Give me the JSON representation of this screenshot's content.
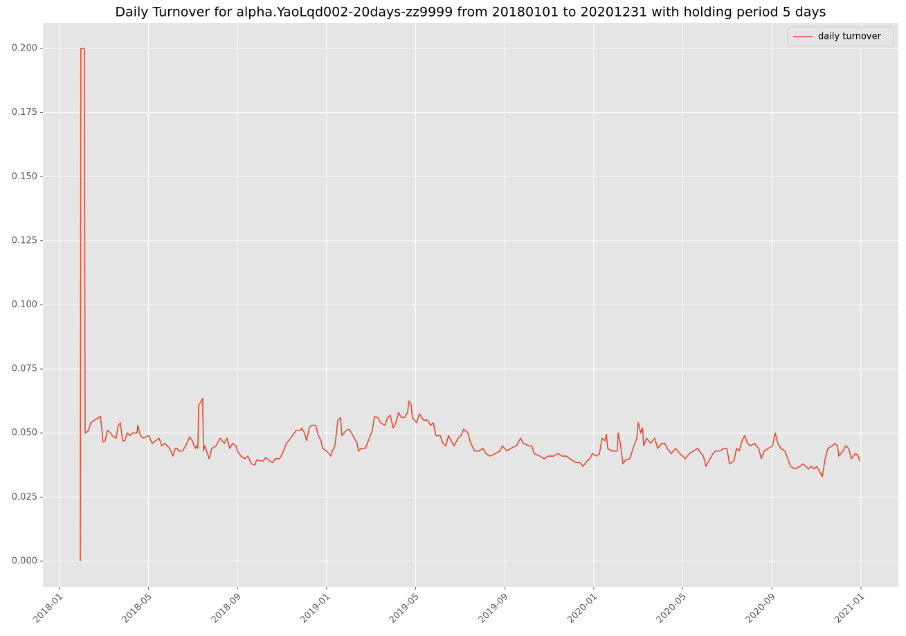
{
  "chart_data": {
    "type": "line",
    "title": "Daily Turnover for alpha.YaoLqd002-20days-zz9999 from 20180101 to 20201231 with holding period 5 days",
    "x": [
      2018.078,
      2018.08,
      2018.093,
      2018.096,
      2018.098,
      2018.109,
      2018.117,
      2018.153,
      2018.158,
      2018.163,
      2018.171,
      2018.179,
      2018.192,
      2018.197,
      2018.212,
      2018.22,
      2018.228,
      2018.236,
      2018.244,
      2018.254,
      2018.264,
      2018.272,
      2018.29,
      2018.293,
      2018.303,
      2018.314,
      2018.334,
      2018.347,
      2018.36,
      2018.373,
      2018.383,
      2018.394,
      2018.412,
      2018.425,
      2018.433,
      2018.44,
      2018.446,
      2018.461,
      2018.477,
      2018.487,
      2018.497,
      2018.508,
      2018.513,
      2018.518,
      2018.521,
      2018.529,
      2018.536,
      2018.539,
      2018.544,
      2018.56,
      2018.57,
      2018.586,
      2018.601,
      2018.617,
      2018.627,
      2018.637,
      2018.648,
      2018.661,
      2018.666,
      2018.679,
      2018.694,
      2018.705,
      2018.718,
      2018.731,
      2018.738,
      2018.762,
      2018.772,
      2018.788,
      2018.798,
      2018.808,
      2018.824,
      2018.834,
      2018.85,
      2018.865,
      2018.886,
      2018.902,
      2018.907,
      2018.917,
      2018.925,
      2018.935,
      2018.943,
      2018.959,
      2018.969,
      2018.979,
      2018.985,
      2019.0,
      2019.016,
      2019.021,
      2019.031,
      2019.042,
      2019.052,
      2019.057,
      2019.073,
      2019.083,
      2019.093,
      2019.104,
      2019.114,
      2019.119,
      2019.13,
      2019.145,
      2019.156,
      2019.171,
      2019.179,
      2019.192,
      2019.202,
      2019.218,
      2019.228,
      2019.238,
      2019.249,
      2019.259,
      2019.269,
      2019.28,
      2019.29,
      2019.303,
      2019.308,
      2019.316,
      2019.321,
      2019.337,
      2019.347,
      2019.363,
      2019.378,
      2019.389,
      2019.399,
      2019.409,
      2019.425,
      2019.435,
      2019.446,
      2019.456,
      2019.466,
      2019.477,
      2019.492,
      2019.503,
      2019.513,
      2019.529,
      2019.539,
      2019.554,
      2019.57,
      2019.585,
      2019.596,
      2019.611,
      2019.632,
      2019.648,
      2019.658,
      2019.674,
      2019.689,
      2019.71,
      2019.726,
      2019.736,
      2019.757,
      2019.767,
      2019.777,
      2019.798,
      2019.814,
      2019.829,
      2019.85,
      2019.866,
      2019.881,
      2019.897,
      2019.917,
      2019.933,
      2019.948,
      2019.959,
      2019.974,
      2019.985,
      2019.995,
      2020.011,
      2020.021,
      2020.031,
      2020.042,
      2020.047,
      2020.052,
      2020.068,
      2020.088,
      2020.091,
      2020.099,
      2020.109,
      2020.119,
      2020.135,
      2020.15,
      2020.161,
      2020.166,
      2020.176,
      2020.182,
      2020.187,
      2020.197,
      2020.213,
      2020.228,
      2020.239,
      2020.254,
      2020.265,
      2020.275,
      2020.29,
      2020.306,
      2020.322,
      2020.342,
      2020.358,
      2020.373,
      2020.389,
      2020.399,
      2020.41,
      2020.42,
      2020.43,
      2020.446,
      2020.456,
      2020.472,
      2020.487,
      2020.498,
      2020.508,
      2020.524,
      2020.534,
      2020.544,
      2020.555,
      2020.565,
      2020.575,
      2020.586,
      2020.601,
      2020.617,
      2020.627,
      2020.638,
      2020.653,
      2020.669,
      2020.679,
      2020.689,
      2020.7,
      2020.715,
      2020.726,
      2020.736,
      2020.752,
      2020.772,
      2020.783,
      2020.793,
      2020.803,
      2020.814,
      2020.824,
      2020.835,
      2020.845,
      2020.855,
      2020.866,
      2020.876,
      2020.892,
      2020.902,
      2020.912,
      2020.917,
      2020.933,
      2020.943,
      2020.954,
      2020.964,
      2020.98,
      2020.99,
      2020.995
    ],
    "series": [
      {
        "name": "daily turnover",
        "color": "#e24a33",
        "values": [
          0,
          0.2,
          0.2,
          0.05,
          0.05,
          0.051,
          0.054,
          0.0565,
          0.052,
          0.0465,
          0.047,
          0.051,
          0.05,
          0.049,
          0.048,
          0.053,
          0.054,
          0.047,
          0.047,
          0.05,
          0.049,
          0.05,
          0.05,
          0.053,
          0.049,
          0.048,
          0.049,
          0.046,
          0.047,
          0.048,
          0.045,
          0.046,
          0.044,
          0.041,
          0.044,
          0.044,
          0.043,
          0.043,
          0.046,
          0.0485,
          0.047,
          0.044,
          0.045,
          0.044,
          0.061,
          0.062,
          0.0635,
          0.043,
          0.045,
          0.04,
          0.044,
          0.045,
          0.048,
          0.046,
          0.048,
          0.044,
          0.046,
          0.045,
          0.043,
          0.041,
          0.04,
          0.041,
          0.038,
          0.0375,
          0.0395,
          0.039,
          0.0405,
          0.039,
          0.0385,
          0.04,
          0.04,
          0.042,
          0.046,
          0.048,
          0.051,
          0.051,
          0.052,
          0.05,
          0.047,
          0.052,
          0.053,
          0.053,
          0.049,
          0.047,
          0.044,
          0.043,
          0.041,
          0.043,
          0.045,
          0.055,
          0.056,
          0.049,
          0.051,
          0.0515,
          0.05,
          0.048,
          0.046,
          0.043,
          0.044,
          0.044,
          0.047,
          0.051,
          0.0565,
          0.056,
          0.054,
          0.053,
          0.056,
          0.057,
          0.052,
          0.054,
          0.058,
          0.056,
          0.056,
          0.058,
          0.0625,
          0.061,
          0.056,
          0.054,
          0.0575,
          0.055,
          0.055,
          0.053,
          0.054,
          0.049,
          0.049,
          0.046,
          0.045,
          0.049,
          0.047,
          0.045,
          0.048,
          0.049,
          0.0515,
          0.05,
          0.046,
          0.043,
          0.043,
          0.044,
          0.042,
          0.041,
          0.042,
          0.043,
          0.045,
          0.043,
          0.044,
          0.045,
          0.048,
          0.046,
          0.045,
          0.045,
          0.042,
          0.041,
          0.04,
          0.041,
          0.041,
          0.042,
          0.041,
          0.041,
          0.0395,
          0.0385,
          0.0385,
          0.037,
          0.039,
          0.04,
          0.042,
          0.041,
          0.042,
          0.048,
          0.047,
          0.0495,
          0.044,
          0.043,
          0.043,
          0.05,
          0.046,
          0.038,
          0.0395,
          0.04,
          0.045,
          0.048,
          0.054,
          0.05,
          0.052,
          0.045,
          0.048,
          0.046,
          0.048,
          0.044,
          0.046,
          0.046,
          0.044,
          0.042,
          0.044,
          0.042,
          0.04,
          0.042,
          0.043,
          0.044,
          0.0425,
          0.041,
          0.037,
          0.039,
          0.042,
          0.043,
          0.043,
          0.044,
          0.044,
          0.038,
          0.039,
          0.044,
          0.043,
          0.047,
          0.049,
          0.046,
          0.045,
          0.046,
          0.044,
          0.04,
          0.043,
          0.044,
          0.045,
          0.05,
          0.046,
          0.044,
          0.043,
          0.04,
          0.037,
          0.036,
          0.037,
          0.038,
          0.037,
          0.036,
          0.037,
          0.036,
          0.037,
          0.035,
          0.033,
          0.04,
          0.044,
          0.045,
          0.046,
          0.045,
          0.041,
          0.043,
          0.045,
          0.044,
          0.04,
          0.042,
          0.041,
          0.039
        ]
      }
    ],
    "xlim": [
      2017.938,
      2021.14
    ],
    "xticks": [
      {
        "value": 2018,
        "label": "2018-01"
      },
      {
        "value": 2018.333,
        "label": "2018-05"
      },
      {
        "value": 2018.667,
        "label": "2018-09"
      },
      {
        "value": 2019,
        "label": "2019-01"
      },
      {
        "value": 2019.333,
        "label": "2019-05"
      },
      {
        "value": 2019.667,
        "label": "2019-09"
      },
      {
        "value": 2020,
        "label": "2020-01"
      },
      {
        "value": 2020.333,
        "label": "2020-05"
      },
      {
        "value": 2020.667,
        "label": "2020-09"
      },
      {
        "value": 2021,
        "label": "2021-01"
      }
    ],
    "ylim": [
      -0.01,
      0.21
    ],
    "yticks": [
      {
        "value": 0,
        "label": "0.000"
      },
      0.025,
      {
        "value": 0.05,
        "label": "0.050"
      },
      0.075,
      {
        "value": 0.1,
        "label": "0.100"
      },
      0.125,
      {
        "value": 0.15,
        "label": "0.150"
      },
      0.175,
      {
        "value": 0.2,
        "label": "0.200"
      }
    ],
    "grid": true,
    "legend": "upper right"
  }
}
